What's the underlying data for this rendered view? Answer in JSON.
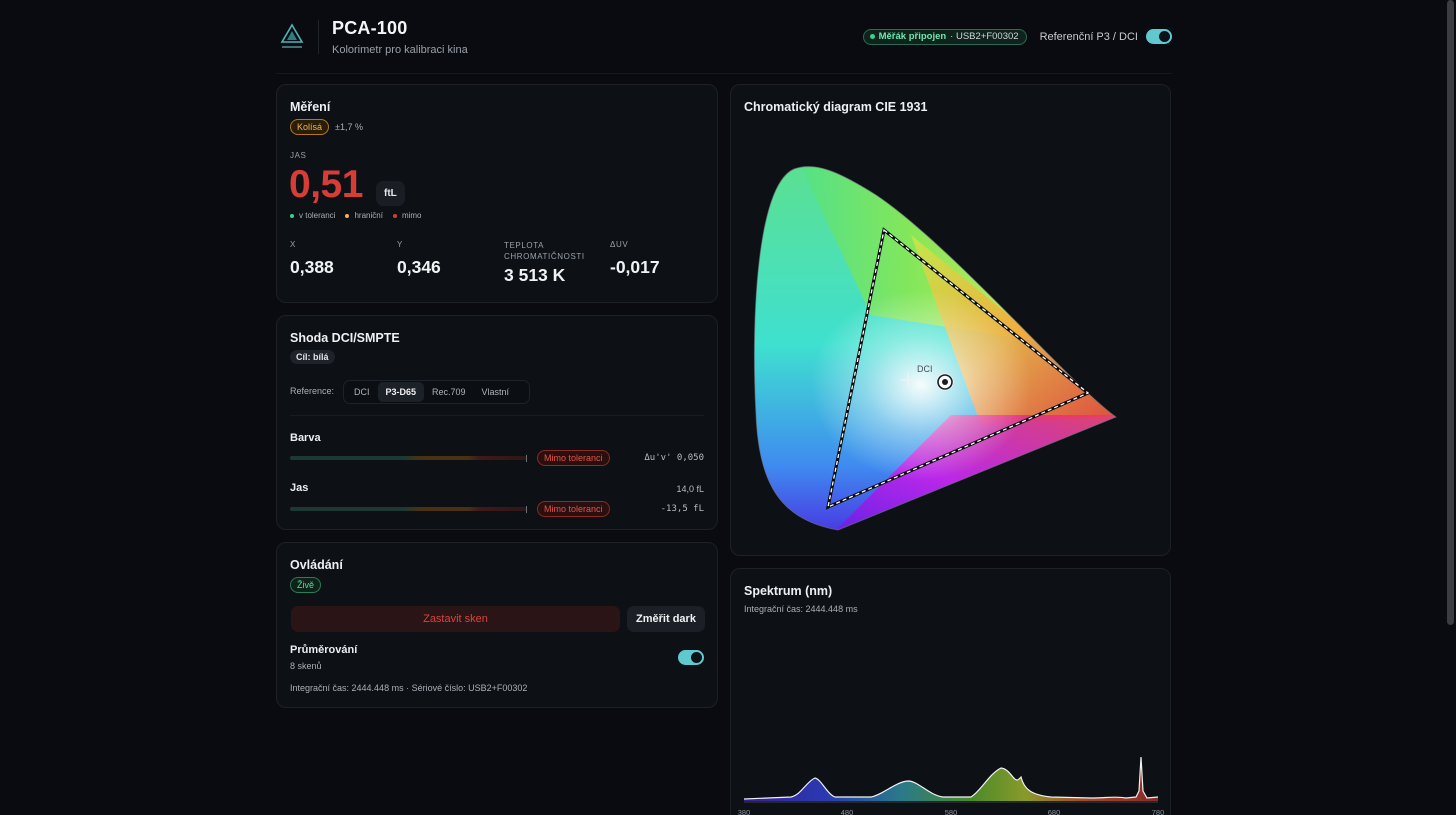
{
  "header": {
    "title": "PCA-100",
    "subtitle": "Kolorimetr pro kalibraci kina",
    "connection_status": "Měřák připojen",
    "connection_serial": "· USB2+F00302",
    "reference_label": "Referenční P3 / DCI",
    "reference_enabled": true
  },
  "mereni": {
    "title": "Měření",
    "stability_badge": "Kolísá",
    "stability_value": "±1,7 %",
    "jas_label": "JAS",
    "jas_value": "0,51",
    "jas_unit": "ftL",
    "legend": [
      "v toleranci",
      "hraniční",
      "mimo"
    ],
    "metrics": [
      {
        "label": "X",
        "value": "0,388"
      },
      {
        "label": "Y",
        "value": "0,346"
      },
      {
        "label": "TEPLOTA CHROMATIČNOSTI",
        "value": "3 513 K"
      },
      {
        "label": "ΔUV",
        "value": "-0,017"
      }
    ]
  },
  "shoda": {
    "title": "Shoda DCI/SMPTE",
    "target_badge": "Cíl: bílá",
    "reference_label": "Reference:",
    "reference_options": [
      "DCI",
      "P3-D65",
      "Rec.709",
      "Vlastní"
    ],
    "reference_selected": "P3-D65",
    "rows": [
      {
        "label": "Barva",
        "status": "Mimo toleranci",
        "value": "Δu'v' 0,050",
        "target": ""
      },
      {
        "label": "Jas",
        "status": "Mimo toleranci",
        "value": "-13,5 fL",
        "target": "14,0 fL"
      }
    ]
  },
  "ovladani": {
    "title": "Ovládání",
    "live_badge": "Živě",
    "stop_button": "Zastavit sken",
    "dark_button": "Změřit dark",
    "averaging_label": "Průměrování",
    "averaging_sub": "8 skenů",
    "averaging_enabled": true,
    "footer": "Integrační čas: 2444.448 ms · Sériové číslo: USB2+F00302"
  },
  "cie": {
    "title": "Chromatický diagram CIE 1931",
    "target_label": "DCI"
  },
  "spektrum": {
    "title": "Spektrum (nm)",
    "integration": "Integrační čas: 2444.448 ms",
    "x_ticks": [
      "380",
      "480",
      "580",
      "680",
      "780"
    ]
  },
  "colors": {
    "accent": "#5fc9cf",
    "out_of_range": "#d63d37",
    "warning": "#f0b445",
    "ok": "#35d48a"
  }
}
